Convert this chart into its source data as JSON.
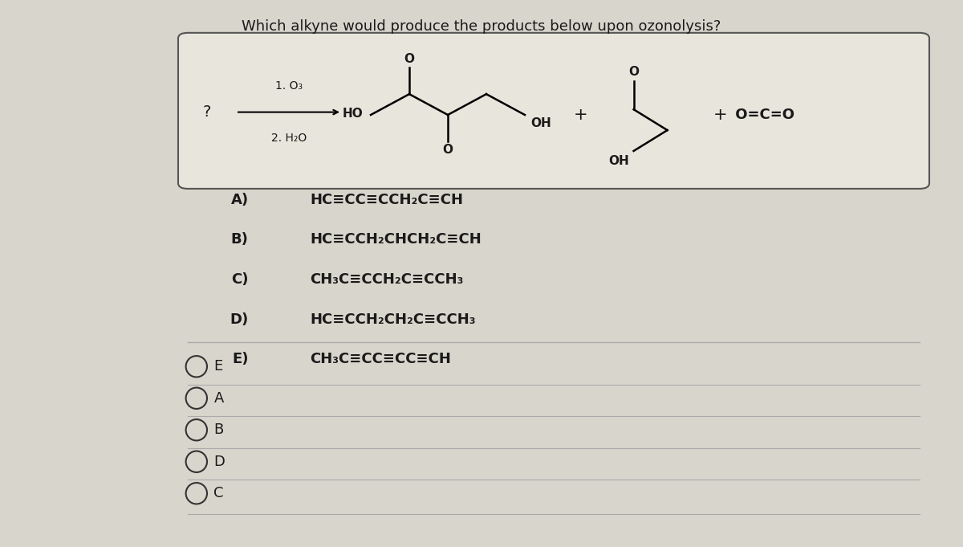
{
  "title": "Which alkyne would produce the products below upon ozonolysis?",
  "title_fontsize": 13,
  "bg_color": "#d8d5cc",
  "box_bg": "#e8e5dc",
  "choices": [
    {
      "label": "A)",
      "formula": "HC≡CC≡CCH₂C≡CH"
    },
    {
      "label": "B)",
      "formula": "HC≡CCH₂CHCH₂C≡CH"
    },
    {
      "label": "C)",
      "formula": "CH₃C≡CCH₂C≡CCH₃"
    },
    {
      "label": "D)",
      "formula": "HC≡CCH₂CH₂C≡CCH₃"
    },
    {
      "label": "E)",
      "formula": "CH₃C≡CC≡CC≡CH"
    }
  ],
  "answer_options": [
    "E",
    "A",
    "B",
    "D",
    "C"
  ],
  "text_color": "#1a1a1a",
  "line_color": "#aaaaaa"
}
